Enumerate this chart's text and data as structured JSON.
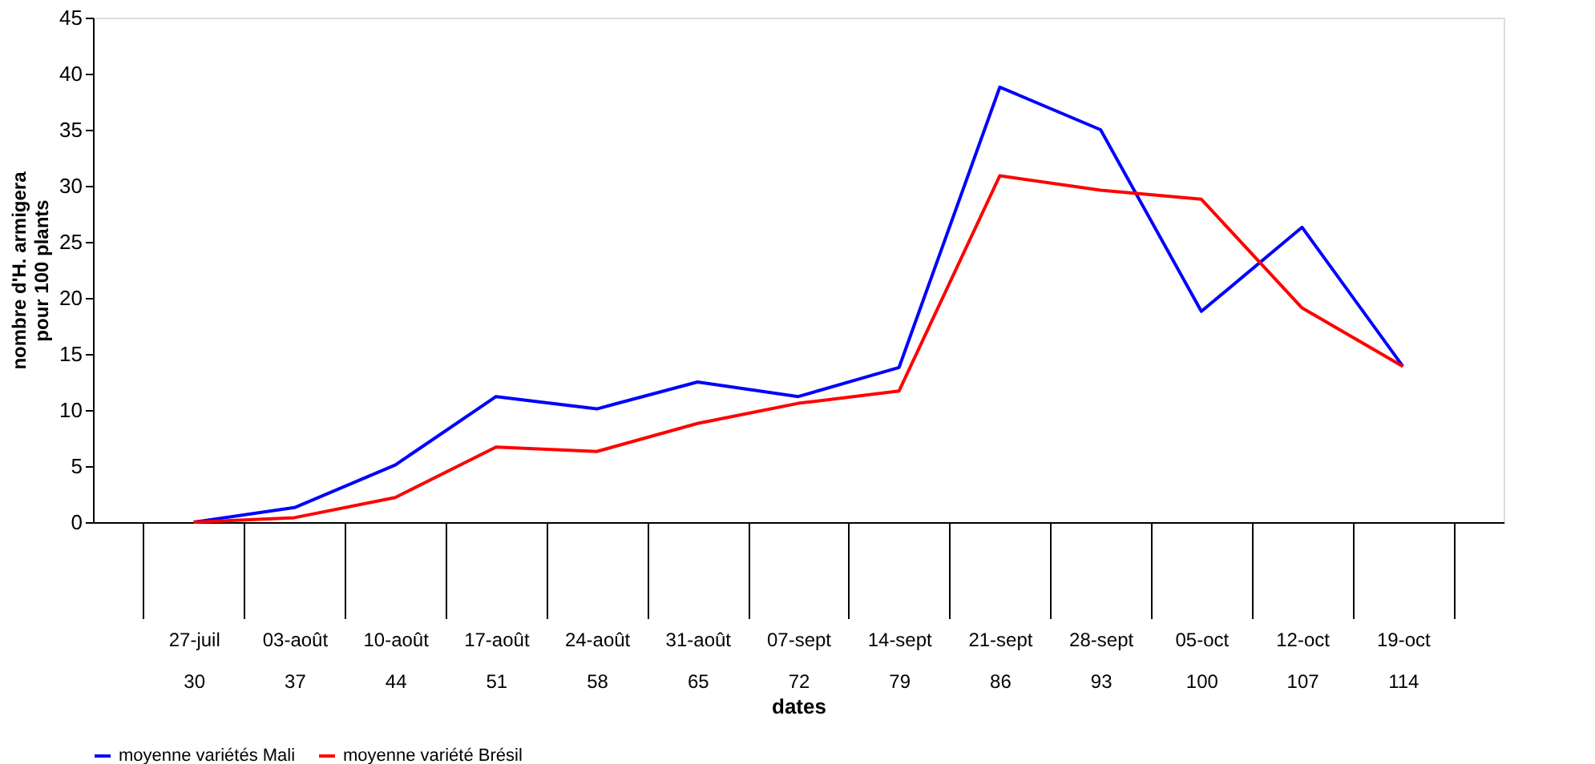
{
  "chart_data": {
    "type": "line",
    "xlabel": "dates",
    "ylabel": "nombre d'H. armigera\npour 100 plants",
    "categories": [
      "27-juil\n30",
      "03-août\n37",
      "10-août\n44",
      "17-août\n51",
      "24-août\n58",
      "31-août\n65",
      "07-sept\n72",
      "14-sept\n79",
      "21-sept\n86",
      "28-sept\n93",
      "05-oct\n100",
      "12-oct\n107",
      "19-oct\n114"
    ],
    "series": [
      {
        "name": "moyenne variétés Mali",
        "color": "#0000ff",
        "values": [
          0,
          1.3,
          5.1,
          11.2,
          10.1,
          12.5,
          11.2,
          13.8,
          38.8,
          35.0,
          18.8,
          26.3,
          13.9
        ]
      },
      {
        "name": "moyenne variété Brésil",
        "color": "#ff0000",
        "values": [
          0,
          0.4,
          2.2,
          6.7,
          6.3,
          8.8,
          10.6,
          11.7,
          30.9,
          29.6,
          28.8,
          19.1,
          13.9
        ]
      }
    ],
    "ylim": [
      0,
      45
    ],
    "yticks": [
      0,
      5,
      10,
      15,
      20,
      25,
      30,
      35,
      40,
      45
    ],
    "grid": false,
    "legend": "bottom",
    "marker": "none",
    "line_style": "solid"
  }
}
